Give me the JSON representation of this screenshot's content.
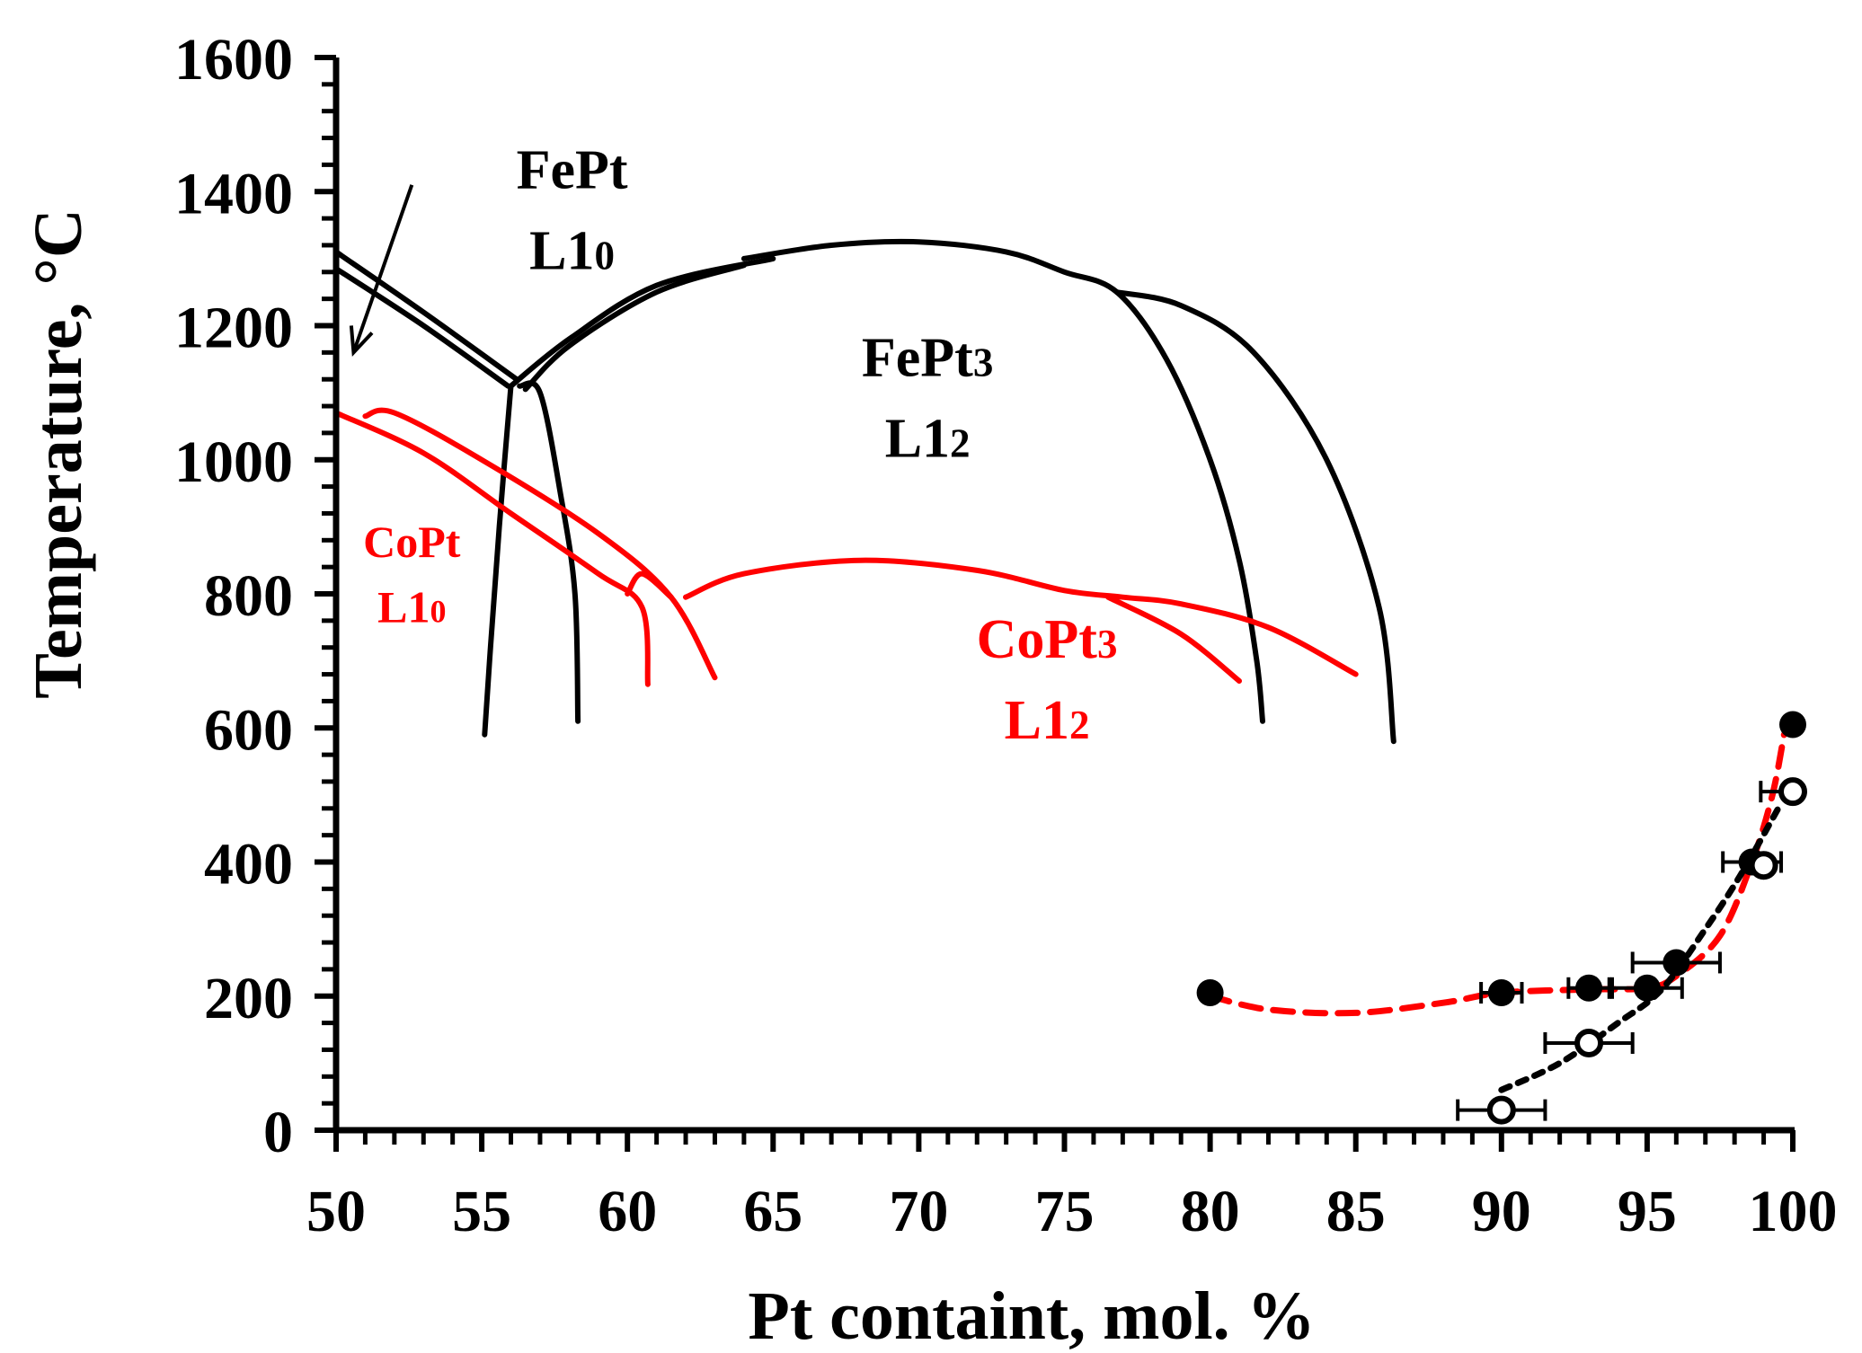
{
  "chart_data": {
    "type": "scatter",
    "title": "",
    "xlabel": "Pt containt, mol. %",
    "ylabel": "Temperature, °C",
    "xlim": [
      50,
      100
    ],
    "ylim": [
      0,
      1600
    ],
    "xticks": [
      50,
      55,
      60,
      65,
      70,
      75,
      80,
      85,
      90,
      95,
      100
    ],
    "yticks": [
      0,
      200,
      400,
      600,
      800,
      1000,
      1200,
      1400,
      1600
    ],
    "colors": {
      "fept": "#000000",
      "copt": "#ff0000"
    },
    "annotations": [
      {
        "id": "fept",
        "line1": "FePt",
        "base": "L1",
        "sub": "0",
        "color": "#000000",
        "x": 58.1,
        "y": 1405,
        "size": 62
      },
      {
        "id": "fept3",
        "line1": "FePt",
        "line1_sub": "3",
        "base": "L1",
        "sub": "2",
        "color": "#000000",
        "x": 70.3,
        "y": 1125,
        "size": 62
      },
      {
        "id": "copt",
        "line1": "CoPt",
        "base": "L1",
        "sub": "0",
        "color": "#ff0000",
        "x": 52.6,
        "y": 855,
        "size": 50
      },
      {
        "id": "copt3",
        "line1": "CoPt",
        "line1_sub": "3",
        "base": "L1",
        "sub": "2",
        "color": "#ff0000",
        "x": 74.4,
        "y": 705,
        "size": 62
      }
    ],
    "arrow": {
      "from": [
        52.6,
        1410
      ],
      "to": [
        50.6,
        1160
      ]
    },
    "phase_boundaries": [
      {
        "name": "FePt-L10-upper-outer",
        "color": "#000000",
        "points": [
          [
            50,
            1310
          ],
          [
            53,
            1220
          ],
          [
            56.2,
            1120
          ]
        ]
      },
      {
        "name": "FePt-L10-upper-inner",
        "color": "#000000",
        "points": [
          [
            50,
            1285
          ],
          [
            53,
            1200
          ],
          [
            55.9,
            1110
          ]
        ]
      },
      {
        "name": "FePt-L10-left-boundary",
        "color": "#000000",
        "points": [
          [
            56.0,
            1110
          ],
          [
            55.6,
            900
          ],
          [
            55.3,
            720
          ],
          [
            55.1,
            590
          ]
        ]
      },
      {
        "name": "FePt-L10-right-boundary",
        "color": "#000000",
        "points": [
          [
            56.3,
            1110
          ],
          [
            57.0,
            1100
          ],
          [
            57.7,
            950
          ],
          [
            58.2,
            800
          ],
          [
            58.3,
            610
          ]
        ]
      },
      {
        "name": "FePt3-dome-upper",
        "color": "#000000",
        "points": [
          [
            56.0,
            1110
          ],
          [
            58,
            1180
          ],
          [
            61,
            1260
          ],
          [
            65,
            1300
          ]
        ]
      },
      {
        "name": "FePt3-dome-lower",
        "color": "#000000",
        "points": [
          [
            56.5,
            1105
          ],
          [
            58,
            1170
          ],
          [
            61,
            1250
          ],
          [
            64,
            1290
          ]
        ]
      },
      {
        "name": "FePt3-dome-main",
        "color": "#000000",
        "points": [
          [
            64,
            1300
          ],
          [
            67,
            1320
          ],
          [
            70,
            1325
          ],
          [
            73,
            1310
          ],
          [
            75,
            1280
          ],
          [
            76.8,
            1250
          ],
          [
            78.5,
            1150
          ],
          [
            80,
            1000
          ],
          [
            81,
            850
          ],
          [
            81.6,
            700
          ],
          [
            81.8,
            610
          ]
        ]
      },
      {
        "name": "FePt3-right-boundary",
        "color": "#000000",
        "points": [
          [
            76.8,
            1250
          ],
          [
            79,
            1230
          ],
          [
            81.5,
            1160
          ],
          [
            84,
            1000
          ],
          [
            85.8,
            780
          ],
          [
            86.3,
            580
          ]
        ]
      },
      {
        "name": "CoPt-L10-outer",
        "color": "#ff0000",
        "points": [
          [
            50,
            1070
          ],
          [
            53,
            1010
          ],
          [
            56,
            920
          ],
          [
            59,
            830
          ],
          [
            60.5,
            780
          ],
          [
            60.7,
            665
          ]
        ]
      },
      {
        "name": "CoPt-L10-inner",
        "color": "#ff0000",
        "points": [
          [
            51,
            1065
          ],
          [
            52,
            1070
          ],
          [
            55,
            1000
          ],
          [
            59,
            890
          ],
          [
            61.5,
            795
          ],
          [
            63,
            675
          ]
        ]
      },
      {
        "name": "CoPt-L10-tie",
        "color": "#ff0000",
        "points": [
          [
            60.0,
            800
          ],
          [
            60.5,
            830
          ],
          [
            61.5,
            795
          ]
        ]
      },
      {
        "name": "CoPt3-dome",
        "color": "#ff0000",
        "points": [
          [
            62,
            795
          ],
          [
            64,
            830
          ],
          [
            68,
            850
          ],
          [
            72,
            835
          ],
          [
            75,
            805
          ],
          [
            77,
            795
          ],
          [
            79,
            785
          ],
          [
            82,
            750
          ],
          [
            85,
            680
          ]
        ]
      },
      {
        "name": "CoPt3-inner",
        "color": "#ff0000",
        "points": [
          [
            76.5,
            795
          ],
          [
            79,
            740
          ],
          [
            81,
            670
          ]
        ]
      }
    ],
    "series": [
      {
        "name": "filled points",
        "marker": "filled",
        "color": "#000000",
        "points": [
          [
            80,
            205
          ],
          [
            90,
            205
          ],
          [
            93,
            212
          ],
          [
            95,
            212
          ],
          [
            96,
            250
          ],
          [
            98.6,
            400
          ],
          [
            100,
            605
          ]
        ]
      },
      {
        "name": "open points",
        "marker": "open",
        "color": "#000000",
        "points": [
          [
            90,
            30
          ],
          [
            93,
            130
          ],
          [
            99,
            395
          ],
          [
            100,
            505
          ]
        ]
      }
    ],
    "error_bars": [
      {
        "x": 90,
        "y": 30,
        "xerr": 1.5
      },
      {
        "x": 93,
        "y": 130,
        "xerr": 1.5
      },
      {
        "x": 90,
        "y": 205,
        "xerr": 0.7
      },
      {
        "x": 93,
        "y": 212,
        "xerr": 0.7
      },
      {
        "x": 95,
        "y": 212,
        "xerr": 1.2
      },
      {
        "x": 96,
        "y": 250,
        "xerr": 1.5
      },
      {
        "x": 98.6,
        "y": 400,
        "xerr": 1.0
      },
      {
        "x": 99.5,
        "y": 505,
        "xerr": 0.6
      }
    ],
    "trend_lines": [
      {
        "name": "red dashed trend",
        "color": "#ff0000",
        "points": [
          [
            80,
            200
          ],
          [
            82,
            180
          ],
          [
            85,
            175
          ],
          [
            88,
            190
          ],
          [
            90,
            205
          ],
          [
            93,
            210
          ],
          [
            95,
            212
          ],
          [
            96,
            230
          ],
          [
            97.5,
            290
          ],
          [
            98.6,
            400
          ],
          [
            99.3,
            500
          ],
          [
            99.7,
            590
          ]
        ]
      },
      {
        "name": "black dotted trend",
        "color": "#000000",
        "points": [
          [
            90,
            60
          ],
          [
            92,
            100
          ],
          [
            94,
            160
          ],
          [
            95.5,
            210
          ],
          [
            97,
            300
          ],
          [
            98.2,
            380
          ],
          [
            99.5,
            480
          ]
        ]
      }
    ]
  }
}
